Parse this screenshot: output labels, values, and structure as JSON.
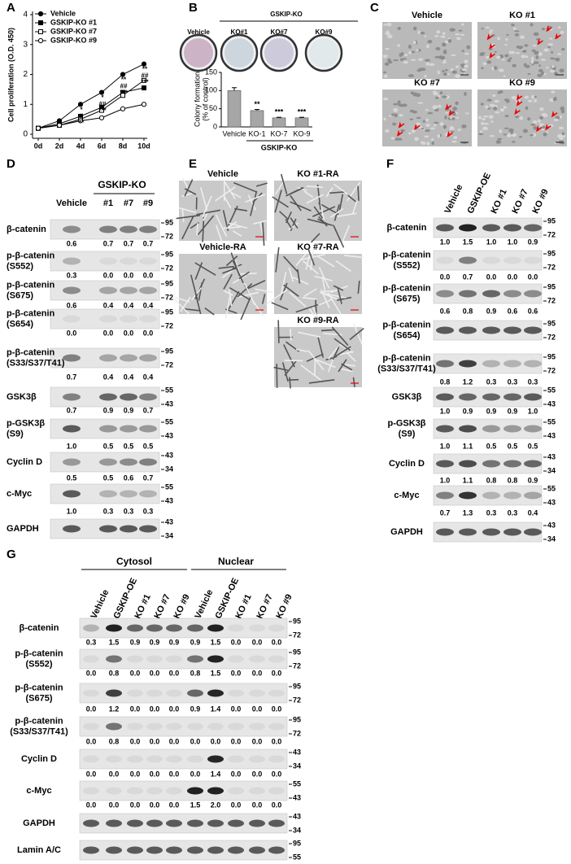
{
  "panel_labels": [
    "A",
    "B",
    "C",
    "D",
    "E",
    "F",
    "G"
  ],
  "chart_data": [
    {
      "type": "line",
      "ylabel": "Cell proliferation (O.D. 450)",
      "categories": [
        "0d",
        "2d",
        "4d",
        "6d",
        "8d",
        "10d"
      ],
      "ylim": [
        0,
        4
      ],
      "yticks": [
        0,
        1,
        2,
        3,
        4
      ],
      "series": [
        {
          "name": "Vehicle",
          "color": "#000000",
          "marker": "circle",
          "fill": "#000000",
          "values": [
            0.2,
            0.45,
            1.0,
            1.4,
            2.0,
            2.35
          ]
        },
        {
          "name": "GSKIP-KO #1",
          "color": "#000000",
          "marker": "square",
          "fill": "#000000",
          "values": [
            0.2,
            0.35,
            0.6,
            0.9,
            1.4,
            1.55
          ]
        },
        {
          "name": "GSKIP-KO #7",
          "color": "#000000",
          "marker": "square",
          "fill": "#ffffff",
          "values": [
            0.2,
            0.3,
            0.5,
            0.8,
            1.3,
            1.8
          ]
        },
        {
          "name": "GSKIP-KO #9",
          "color": "#000000",
          "marker": "circle",
          "fill": "#ffffff",
          "values": [
            0.2,
            0.3,
            0.45,
            0.55,
            0.85,
            1.0
          ]
        }
      ],
      "annotations": [
        null,
        null,
        [
          "*",
          "#",
          "**"
        ],
        [
          "*",
          "##",
          "***"
        ],
        [
          "**",
          "##",
          "***"
        ],
        [
          "**",
          "##",
          "***"
        ]
      ]
    },
    {
      "type": "bar",
      "ylabel": [
        "Colony formation",
        "(% of control)"
      ],
      "categories": [
        "Vehicle",
        "KO-1",
        "KO-7",
        "KO-9"
      ],
      "values": [
        100,
        45,
        25,
        25
      ],
      "errors": [
        8,
        3,
        1.5,
        1.5
      ],
      "color": "#a6a6a6",
      "ylim": [
        0,
        150
      ],
      "yticks": [
        0,
        50,
        100,
        150
      ],
      "annotations": [
        null,
        "**",
        "***",
        "***"
      ],
      "group_label": "GSKIP-KO"
    }
  ],
  "panel_b_dishes": {
    "header": "GSKIP-KO",
    "labels": [
      "Vehicle",
      "KO#1",
      "KO#7",
      "KO#9"
    ]
  },
  "panel_c": {
    "images": [
      "Vehicle",
      "KO #1",
      "KO #7",
      "KO #9"
    ]
  },
  "panel_d": {
    "header": "GSKIP-KO",
    "lanes": [
      "Vehicle",
      "#1",
      "#7",
      "#9"
    ],
    "rows": [
      {
        "label": [
          "β-catenin"
        ],
        "values": [
          "0.6",
          "0.7",
          "0.7",
          "0.7"
        ],
        "markers": [
          "95",
          "72"
        ]
      },
      {
        "label": [
          "p-β-catenin",
          "(S552)"
        ],
        "values": [
          "0.3",
          "0.0",
          "0.0",
          "0.0"
        ],
        "markers": [
          "95",
          "72"
        ]
      },
      {
        "label": [
          "p-β-catenin",
          "(S675)"
        ],
        "values": [
          "0.6",
          "0.4",
          "0.4",
          "0.4"
        ],
        "markers": [
          "95",
          "72"
        ]
      },
      {
        "label": [
          "p-β-catenin",
          "(S654)"
        ],
        "values": [
          "0.0",
          "0.0",
          "0.0",
          "0.0"
        ],
        "markers": [
          "95",
          "72"
        ]
      },
      {
        "label": [
          "p-β-catenin",
          "(S33/S37/T41)"
        ],
        "values": [
          "0.7",
          "0.4",
          "0.4",
          "0.4"
        ],
        "markers": [
          "95",
          "72"
        ]
      },
      {
        "label": [
          "GSK3β"
        ],
        "values": [
          "0.7",
          "0.9",
          "0.9",
          "0.7"
        ],
        "markers": [
          "55",
          "43"
        ]
      },
      {
        "label": [
          "p-GSK3β",
          "(S9)"
        ],
        "values": [
          "1.0",
          "0.5",
          "0.5",
          "0.5"
        ],
        "markers": [
          "55",
          "43"
        ]
      },
      {
        "label": [
          "Cyclin D"
        ],
        "values": [
          "0.5",
          "0.5",
          "0.6",
          "0.7"
        ],
        "markers": [
          "43",
          "34"
        ]
      },
      {
        "label": [
          "c-Myc"
        ],
        "values": [
          "1.0",
          "0.3",
          "0.3",
          "0.3"
        ],
        "markers": [
          "55",
          "43"
        ]
      },
      {
        "label": [
          "GAPDH"
        ],
        "markers": [
          "43",
          "34"
        ]
      }
    ]
  },
  "panel_e": {
    "images": [
      "Vehicle",
      "KO #1-RA",
      "Vehicle-RA",
      "KO #7-RA",
      "KO #9-RA"
    ]
  },
  "panel_f": {
    "lanes": [
      "Vehicle",
      "GSKIP-OE",
      "KO #1",
      "KO #7",
      "KO #9"
    ],
    "rows": [
      {
        "label": [
          "β-catenin"
        ],
        "values": [
          "1.0",
          "1.5",
          "1.0",
          "1.0",
          "0.9"
        ],
        "markers": [
          "95",
          "72"
        ]
      },
      {
        "label": [
          "p-β-catenin",
          "(S552)"
        ],
        "values": [
          "0.0",
          "0.7",
          "0.0",
          "0.0",
          "0.0"
        ],
        "markers": [
          "95",
          "72"
        ]
      },
      {
        "label": [
          "p-β-catenin",
          "(S675)"
        ],
        "values": [
          "0.6",
          "0.8",
          "0.9",
          "0.6",
          "0.6"
        ],
        "markers": [
          "95",
          "72"
        ]
      },
      {
        "label": [
          "p-β-catenin",
          "(S654)"
        ],
        "markers": [
          "95",
          "72"
        ]
      },
      {
        "label": [
          "p-β-catenin",
          "(S33/S37/T41)"
        ],
        "values": [
          "0.8",
          "1.2",
          "0.3",
          "0.3",
          "0.3"
        ],
        "markers": [
          "95",
          "72"
        ]
      },
      {
        "label": [
          "GSK3β"
        ],
        "values": [
          "1.0",
          "0.9",
          "0.9",
          "0.9",
          "1.0"
        ],
        "markers": [
          "55",
          "43"
        ]
      },
      {
        "label": [
          "p-GSK3β",
          "(S9)"
        ],
        "values": [
          "1.0",
          "1.1",
          "0.5",
          "0.5",
          "0.5"
        ],
        "markers": [
          "55",
          "43"
        ]
      },
      {
        "label": [
          "Cyclin D"
        ],
        "values": [
          "1.0",
          "1.1",
          "0.8",
          "0.8",
          "0.9"
        ],
        "markers": [
          "43",
          "34"
        ]
      },
      {
        "label": [
          "c-Myc"
        ],
        "values": [
          "0.7",
          "1.3",
          "0.3",
          "0.3",
          "0.4"
        ],
        "markers": [
          "55",
          "43"
        ]
      },
      {
        "label": [
          "GAPDH"
        ],
        "markers": [
          "43",
          "34"
        ]
      }
    ]
  },
  "panel_g": {
    "groups": [
      "Cytosol",
      "Nuclear"
    ],
    "lanes": [
      "Vehicle",
      "GSKIP-OE",
      "KO #1",
      "KO #7",
      "KO #9",
      "Vehicle",
      "GSKIP-OE",
      "KO #1",
      "KO #7",
      "KO #9"
    ],
    "rows": [
      {
        "label": [
          "β-catenin"
        ],
        "values": [
          "0.3",
          "1.5",
          "0.9",
          "0.9",
          "0.9",
          "0.9",
          "1.5",
          "0.0",
          "0.0",
          "0.0"
        ],
        "markers": [
          "95",
          "72"
        ]
      },
      {
        "label": [
          "p-β-catenin",
          "(S552)"
        ],
        "values": [
          "0.0",
          "0.8",
          "0.0",
          "0.0",
          "0.0",
          "0.8",
          "1.5",
          "0.0",
          "0.0",
          "0.0"
        ],
        "markers": [
          "95",
          "72"
        ]
      },
      {
        "label": [
          "p-β-catenin",
          "(S675)"
        ],
        "values": [
          "0.0",
          "1.2",
          "0.0",
          "0.0",
          "0.0",
          "0.9",
          "1.4",
          "0.0",
          "0.0",
          "0.0"
        ],
        "markers": [
          "95",
          "72"
        ]
      },
      {
        "label": [
          "p-β-catenin",
          "(S33/S37/T41)"
        ],
        "values": [
          "0.0",
          "0.8",
          "0.0",
          "0.0",
          "0.0",
          "0.0",
          "0.0",
          "0.0",
          "0.0",
          "0.0"
        ],
        "markers": [
          "95",
          "72"
        ]
      },
      {
        "label": [
          "Cyclin D"
        ],
        "values": [
          "0.0",
          "0.0",
          "0.0",
          "0.0",
          "0.0",
          "0.0",
          "1.4",
          "0.0",
          "0.0",
          "0.0"
        ],
        "markers": [
          "43",
          "34"
        ]
      },
      {
        "label": [
          "c-Myc"
        ],
        "values": [
          "0.0",
          "0.0",
          "0.0",
          "0.0",
          "0.0",
          "1.5",
          "2.0",
          "0.0",
          "0.0",
          "0.0"
        ],
        "markers": [
          "55",
          "43"
        ]
      },
      {
        "label": [
          "GAPDH"
        ],
        "markers": [
          "43",
          "34"
        ]
      },
      {
        "label": [
          "Lamin A/C"
        ],
        "markers": [
          "95",
          "55"
        ]
      }
    ]
  }
}
